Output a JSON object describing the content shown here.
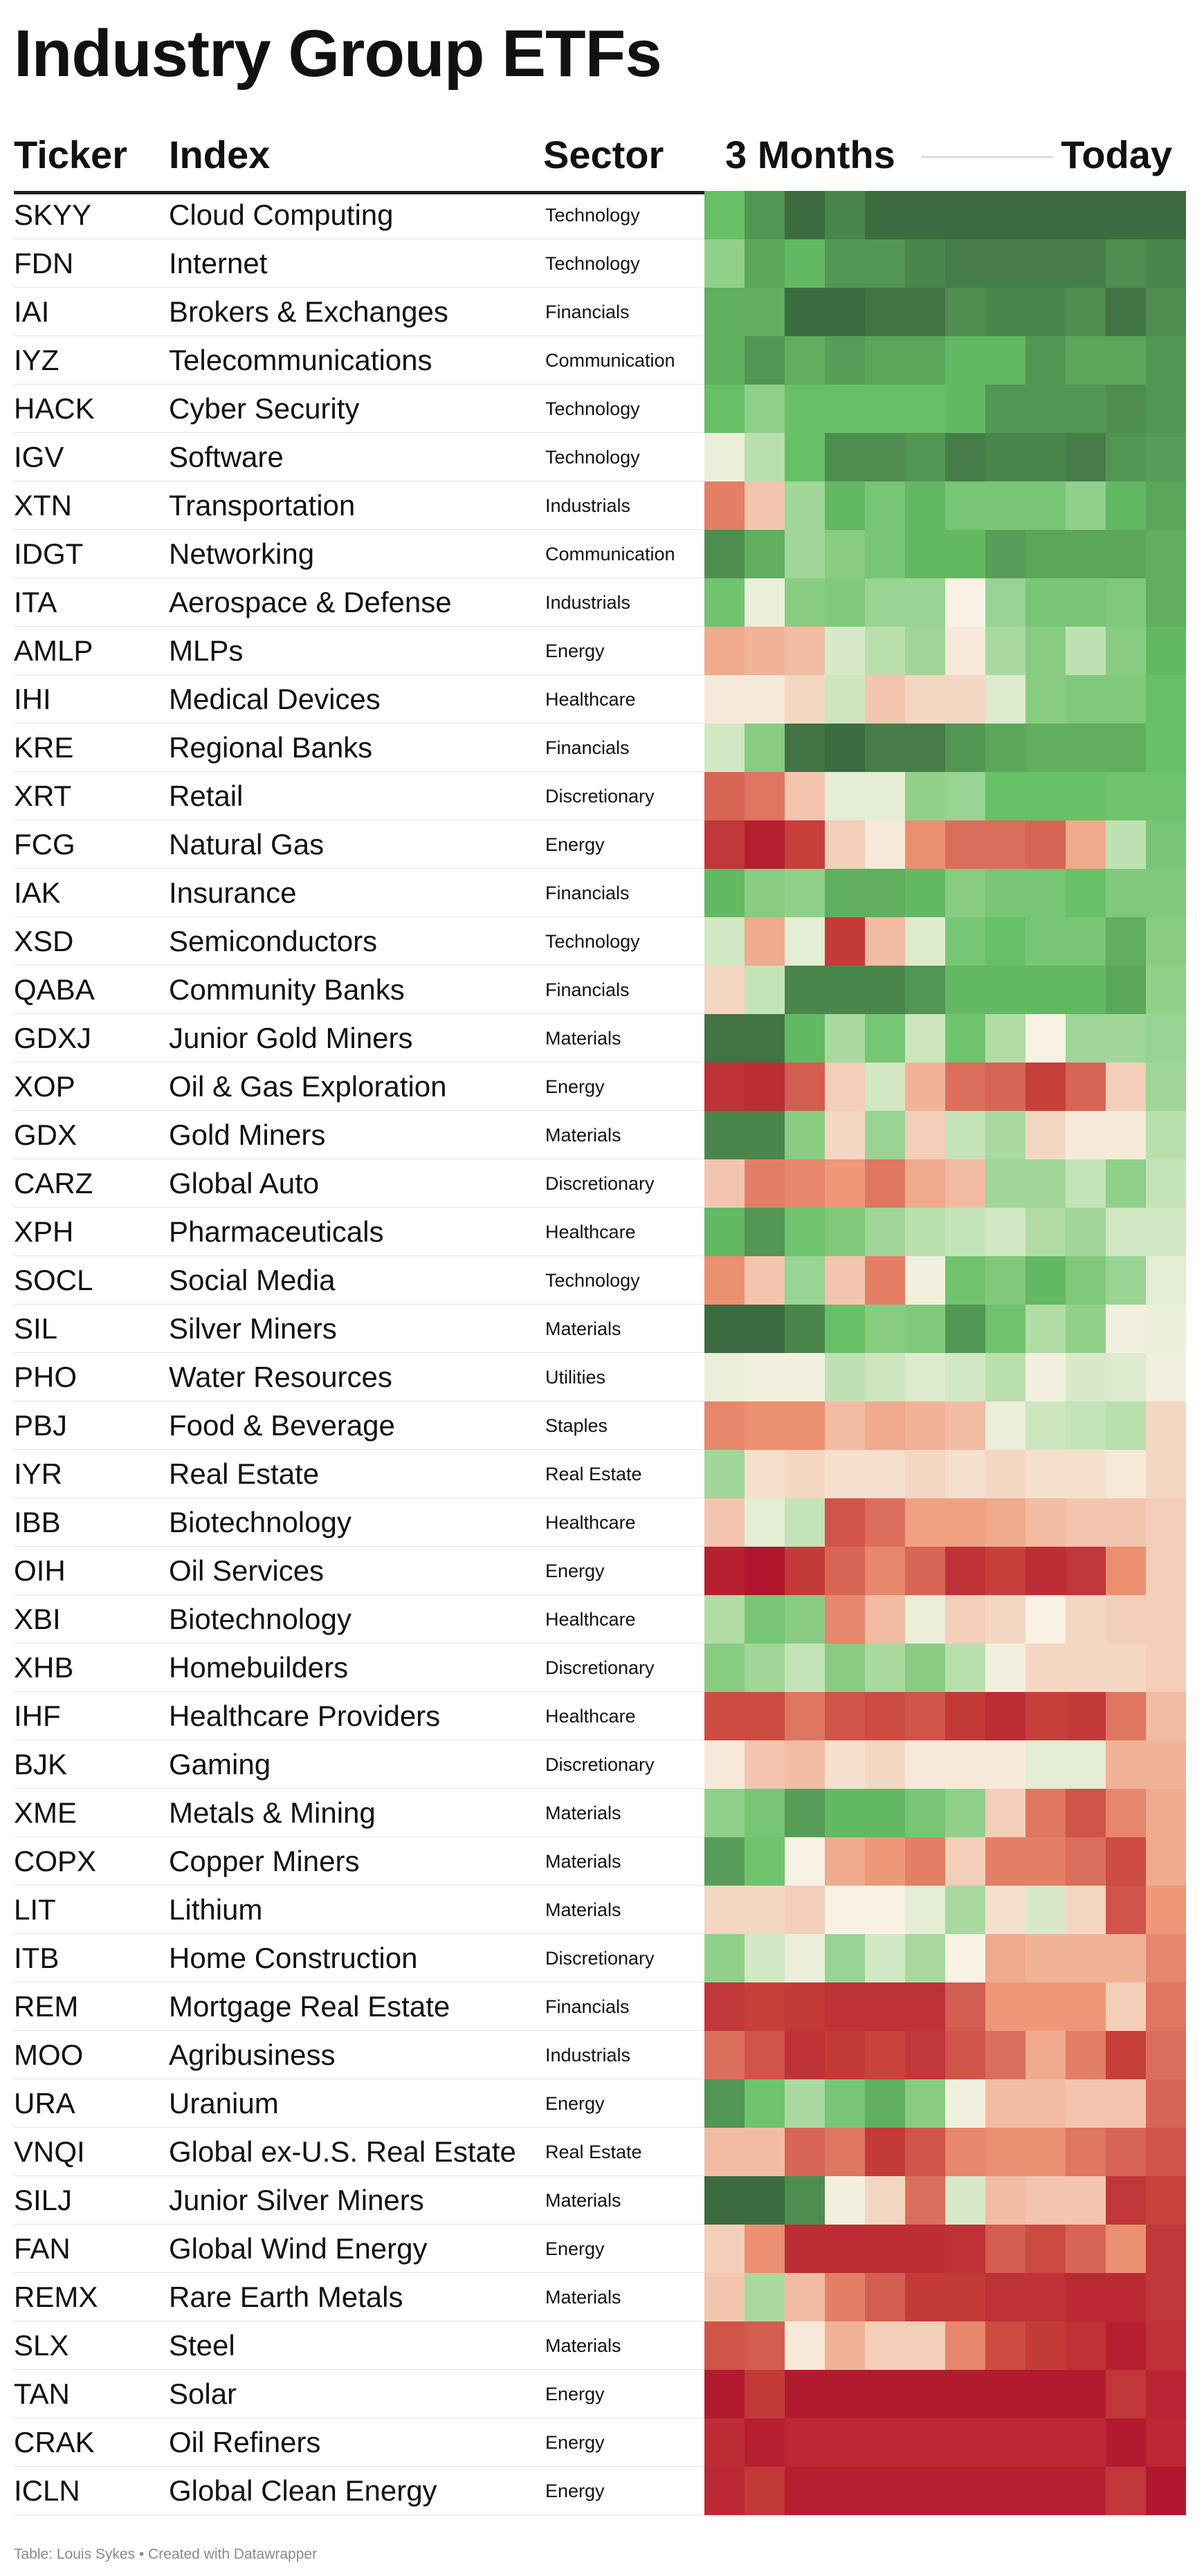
{
  "title": "Industry Group ETFs",
  "columns": {
    "ticker": "Ticker",
    "index": "Index",
    "sector": "Sector",
    "period_start": "3 Months",
    "period_end": "Today"
  },
  "footer": "Table: Louis Sykes • Created with Datawrapper",
  "colors": {
    "dark_red": "#b0172e",
    "red": "#c8433c",
    "salmon": "#ee9877",
    "cream": "#f7f2e4",
    "light_green": "#b9dfad",
    "green": "#67c066",
    "dark_green": "#3d6b40"
  },
  "chart_data": {
    "type": "heatmap",
    "title": "Industry Group ETFs",
    "color_scale": [
      "#b0172e",
      "#c8433c",
      "#ee9877",
      "#f7f2e4",
      "#b9dfad",
      "#67c066",
      "#3d6b40"
    ],
    "rows": [
      {
        "ticker": "SKYY",
        "index": "Cloud Computing",
        "sector": "Technology",
        "values": [
          2,
          2.5,
          3,
          2.7,
          3,
          3,
          3,
          3,
          3,
          3,
          3,
          3
        ]
      },
      {
        "ticker": "FDN",
        "index": "Internet",
        "sector": "Technology",
        "values": [
          1.5,
          2.3,
          2.1,
          2.5,
          2.5,
          2.7,
          2.8,
          2.8,
          2.8,
          2.8,
          2.6,
          2.7
        ]
      },
      {
        "ticker": "IAI",
        "index": "Brokers & Exchanges",
        "sector": "Financials",
        "values": [
          2.2,
          2.2,
          3,
          3,
          2.9,
          2.9,
          2.6,
          2.7,
          2.7,
          2.6,
          2.9,
          2.6
        ]
      },
      {
        "ticker": "IYZ",
        "index": "Telecommunications",
        "sector": "Communication",
        "values": [
          2.2,
          2.5,
          2.2,
          2.4,
          2.3,
          2.3,
          2.1,
          2.1,
          2.5,
          2.3,
          2.3,
          2.5
        ]
      },
      {
        "ticker": "HACK",
        "index": "Cyber Security",
        "sector": "Technology",
        "values": [
          2,
          1.5,
          2,
          2,
          2,
          2,
          2.1,
          2.5,
          2.5,
          2.5,
          2.6,
          2.5
        ]
      },
      {
        "ticker": "IGV",
        "index": "Software",
        "sector": "Technology",
        "values": [
          0.2,
          1,
          2,
          2.6,
          2.6,
          2.5,
          2.8,
          2.7,
          2.7,
          2.8,
          2.5,
          2.4
        ]
      },
      {
        "ticker": "XTN",
        "index": "Transportation",
        "sector": "Industrials",
        "values": [
          -1.3,
          -0.5,
          1.3,
          2.1,
          1.8,
          2.1,
          1.8,
          1.8,
          1.8,
          1.5,
          2.1,
          2.3
        ]
      },
      {
        "ticker": "IDGT",
        "index": "Networking",
        "sector": "Communication",
        "values": [
          2.6,
          2.2,
          1.3,
          1.6,
          1.8,
          2.1,
          2.1,
          2.4,
          2.3,
          2.3,
          2.3,
          2.2
        ]
      },
      {
        "ticker": "ITA",
        "index": "Aerospace & Defense",
        "sector": "Industrials",
        "values": [
          1.9,
          0.2,
          1.6,
          1.7,
          1.4,
          1.4,
          0,
          1.4,
          1.8,
          1.8,
          1.7,
          2.2
        ]
      },
      {
        "ticker": "AMLP",
        "index": "MLPs",
        "sector": "Energy",
        "values": [
          -0.8,
          -0.7,
          -0.6,
          0.5,
          1,
          1.3,
          -0.1,
          1.2,
          1.6,
          0.9,
          1.6,
          2.1
        ]
      },
      {
        "ticker": "IHI",
        "index": "Medical Devices",
        "sector": "Healthcare",
        "values": [
          -0.1,
          -0.1,
          -0.3,
          0.7,
          -0.5,
          -0.3,
          -0.3,
          0.4,
          1.6,
          1.7,
          1.7,
          2
        ]
      },
      {
        "ticker": "KRE",
        "index": "Regional Banks",
        "sector": "Financials",
        "values": [
          0.6,
          1.6,
          2.9,
          3,
          2.8,
          2.8,
          2.5,
          2.3,
          2.2,
          2.2,
          2.2,
          2
        ]
      },
      {
        "ticker": "XRT",
        "index": "Retail",
        "sector": "Discretionary",
        "values": [
          -1.6,
          -1.4,
          -0.5,
          0.3,
          0.3,
          1.5,
          1.4,
          2,
          2,
          2,
          1.9,
          1.9
        ]
      },
      {
        "ticker": "FCG",
        "index": "Natural Gas",
        "sector": "Energy",
        "values": [
          -2.3,
          -2.8,
          -2.1,
          -0.4,
          -0.1,
          -1.1,
          -1.5,
          -1.5,
          -1.6,
          -0.8,
          0.9,
          1.8
        ]
      },
      {
        "ticker": "IAK",
        "index": "Insurance",
        "sector": "Financials",
        "values": [
          2.1,
          1.6,
          1.5,
          2.2,
          2.2,
          2.1,
          1.6,
          1.8,
          1.8,
          2,
          1.7,
          1.7
        ]
      },
      {
        "ticker": "XSD",
        "index": "Semiconductors",
        "sector": "Technology",
        "values": [
          0.6,
          -0.8,
          0.3,
          -2.2,
          -0.6,
          0.4,
          1.8,
          2,
          1.8,
          1.8,
          2.2,
          1.6
        ]
      },
      {
        "ticker": "QABA",
        "index": "Community Banks",
        "sector": "Financials",
        "values": [
          -0.3,
          0.8,
          2.7,
          2.7,
          2.7,
          2.5,
          2.1,
          2.1,
          2.1,
          2.1,
          2.3,
          1.5
        ]
      },
      {
        "ticker": "GDXJ",
        "index": "Junior Gold Miners",
        "sector": "Materials",
        "values": [
          2.9,
          2.9,
          2.1,
          1.2,
          1.8,
          0.7,
          1.9,
          1.1,
          0,
          1.3,
          1.3,
          1.4
        ]
      },
      {
        "ticker": "XOP",
        "index": "Oil & Gas Exploration",
        "sector": "Energy",
        "values": [
          -2.4,
          -2.5,
          -1.7,
          -0.4,
          0.6,
          -0.7,
          -1.5,
          -1.6,
          -2.1,
          -1.6,
          -0.4,
          1.3
        ]
      },
      {
        "ticker": "GDX",
        "index": "Gold Miners",
        "sector": "Materials",
        "values": [
          2.7,
          2.7,
          1.6,
          -0.3,
          1.4,
          -0.4,
          0.8,
          1.2,
          -0.3,
          -0.1,
          -0.1,
          1
        ]
      },
      {
        "ticker": "CARZ",
        "index": "Global Auto",
        "sector": "Discretionary",
        "values": [
          -0.5,
          -1.3,
          -1.2,
          -1,
          -1.4,
          -0.8,
          -0.6,
          1.3,
          1.3,
          0.8,
          1.5,
          0.8
        ]
      },
      {
        "ticker": "XPH",
        "index": "Pharmaceuticals",
        "sector": "Healthcare",
        "values": [
          2.1,
          2.5,
          1.9,
          1.7,
          1.3,
          1,
          0.8,
          0.6,
          1.1,
          1.3,
          0.6,
          0.6
        ]
      },
      {
        "ticker": "SOCL",
        "index": "Social Media",
        "sector": "Technology",
        "values": [
          -1.1,
          -0.5,
          1.4,
          -0.5,
          -1.3,
          0.1,
          1.9,
          1.7,
          2.1,
          1.7,
          1.4,
          0.3
        ]
      },
      {
        "ticker": "SIL",
        "index": "Silver Miners",
        "sector": "Materials",
        "values": [
          3,
          3,
          2.7,
          2,
          1.6,
          1.7,
          2.5,
          1.9,
          1.1,
          1.5,
          0.1,
          0.2
        ]
      },
      {
        "ticker": "PHO",
        "index": "Water Resources",
        "sector": "Utilities",
        "values": [
          0.2,
          0.1,
          0.1,
          0.9,
          0.7,
          0.4,
          0.6,
          1,
          0.1,
          0.5,
          0.4,
          0.1
        ]
      },
      {
        "ticker": "PBJ",
        "index": "Food & Beverage",
        "sector": "Staples",
        "values": [
          -1.2,
          -1.1,
          -1.1,
          -0.6,
          -0.8,
          -0.7,
          -0.6,
          0.2,
          0.7,
          0.8,
          1,
          -0.3
        ]
      },
      {
        "ticker": "IYR",
        "index": "Real Estate",
        "sector": "Real Estate",
        "values": [
          1.3,
          -0.2,
          -0.3,
          -0.2,
          -0.2,
          -0.3,
          -0.2,
          -0.3,
          -0.2,
          -0.2,
          -0.1,
          -0.3
        ]
      },
      {
        "ticker": "IBB",
        "index": "Biotechnology",
        "sector": "Healthcare",
        "values": [
          -0.5,
          0.3,
          0.8,
          -1.8,
          -1.5,
          -0.9,
          -0.9,
          -0.8,
          -0.6,
          -0.5,
          -0.5,
          -0.4
        ]
      },
      {
        "ticker": "OIH",
        "index": "Oil Services",
        "sector": "Energy",
        "values": [
          -2.8,
          -3,
          -2.2,
          -1.6,
          -1.2,
          -1.6,
          -2.4,
          -2.1,
          -2.5,
          -2.3,
          -1.1,
          -0.4
        ]
      },
      {
        "ticker": "XBI",
        "index": "Biotechnology",
        "sector": "Healthcare",
        "values": [
          1.1,
          1.8,
          1.6,
          -1.2,
          -0.6,
          0.2,
          -0.4,
          -0.3,
          0,
          -0.3,
          -0.4,
          -0.4
        ]
      },
      {
        "ticker": "XHB",
        "index": "Homebuilders",
        "sector": "Discretionary",
        "values": [
          1.6,
          1.3,
          0.8,
          1.6,
          1.2,
          1.6,
          1,
          0.1,
          -0.3,
          -0.3,
          -0.3,
          -0.4
        ]
      },
      {
        "ticker": "IHF",
        "index": "Healthcare Providers",
        "sector": "Healthcare",
        "values": [
          -1.9,
          -1.9,
          -1.4,
          -1.8,
          -1.9,
          -1.8,
          -2.2,
          -2.5,
          -2.1,
          -2.2,
          -1.4,
          -0.6
        ]
      },
      {
        "ticker": "BJK",
        "index": "Gaming",
        "sector": "Discretionary",
        "values": [
          -0.1,
          -0.5,
          -0.6,
          -0.2,
          -0.3,
          -0.1,
          -0.1,
          -0.1,
          0.3,
          0.3,
          -0.7,
          -0.7
        ]
      },
      {
        "ticker": "XME",
        "index": "Metals & Mining",
        "sector": "Materials",
        "values": [
          1.5,
          1.8,
          2.4,
          2.1,
          2.1,
          1.8,
          1.5,
          -0.4,
          -1.4,
          -1.8,
          -1.2,
          -0.8
        ]
      },
      {
        "ticker": "COPX",
        "index": "Copper Miners",
        "sector": "Materials",
        "values": [
          2.4,
          1.9,
          0,
          -0.8,
          -1,
          -1.3,
          -0.4,
          -1.3,
          -1.3,
          -1.5,
          -1.9,
          -0.8
        ]
      },
      {
        "ticker": "LIT",
        "index": "Lithium",
        "sector": "Materials",
        "values": [
          -0.3,
          -0.3,
          -0.4,
          0,
          0,
          0.3,
          1.2,
          -0.2,
          0.5,
          -0.3,
          -1.8,
          -1
        ]
      },
      {
        "ticker": "ITB",
        "index": "Home Construction",
        "sector": "Discretionary",
        "values": [
          1.5,
          0.6,
          0.2,
          1.4,
          0.6,
          1.2,
          0,
          -0.8,
          -0.7,
          -0.7,
          -0.7,
          -1.2
        ]
      },
      {
        "ticker": "REM",
        "index": "Mortgage Real Estate",
        "sector": "Financials",
        "values": [
          -2.3,
          -2.1,
          -2.2,
          -2.4,
          -2.4,
          -2.4,
          -1.7,
          -1,
          -1,
          -1,
          -0.4,
          -1.4
        ]
      },
      {
        "ticker": "MOO",
        "index": "Agribusiness",
        "sector": "Industrials",
        "values": [
          -1.5,
          -1.8,
          -2.4,
          -2.2,
          -2,
          -2.3,
          -1.8,
          -1.5,
          -0.8,
          -1.3,
          -2.1,
          -1.5
        ]
      },
      {
        "ticker": "URA",
        "index": "Uranium",
        "sector": "Energy",
        "values": [
          2.5,
          1.9,
          1.2,
          1.8,
          2.2,
          1.6,
          0.1,
          -0.6,
          -0.6,
          -0.5,
          -0.5,
          -1.6
        ]
      },
      {
        "ticker": "VNQI",
        "index": "Global ex-U.S. Real Estate",
        "sector": "Real Estate",
        "values": [
          -0.6,
          -0.6,
          -1.6,
          -1.4,
          -2.2,
          -1.8,
          -1.2,
          -1.1,
          -1.1,
          -1.4,
          -1.6,
          -1.8
        ]
      },
      {
        "ticker": "SILJ",
        "index": "Junior Silver Miners",
        "sector": "Materials",
        "values": [
          3,
          3,
          2.6,
          0.1,
          -0.3,
          -1.5,
          0.5,
          -0.6,
          -0.5,
          -0.5,
          -2.3,
          -2
        ]
      },
      {
        "ticker": "FAN",
        "index": "Global Wind Energy",
        "sector": "Energy",
        "values": [
          -0.4,
          -1.1,
          -2.5,
          -2.5,
          -2.5,
          -2.5,
          -2.4,
          -1.7,
          -1.9,
          -1.6,
          -1.1,
          -2.3
        ]
      },
      {
        "ticker": "REMX",
        "index": "Rare Earth Metals",
        "sector": "Materials",
        "values": [
          -0.5,
          1.2,
          -0.6,
          -1.3,
          -1.7,
          -2.2,
          -2.2,
          -2.4,
          -2.4,
          -2.6,
          -2.6,
          -2.3
        ]
      },
      {
        "ticker": "SLX",
        "index": "Steel",
        "sector": "Materials",
        "values": [
          -1.8,
          -1.7,
          -0.1,
          -0.7,
          -0.4,
          -0.4,
          -1.2,
          -1.9,
          -2.2,
          -2.4,
          -2.8,
          -2.4
        ]
      },
      {
        "ticker": "TAN",
        "index": "Solar",
        "sector": "Energy",
        "values": [
          -2.9,
          -2.2,
          -2.9,
          -2.9,
          -2.9,
          -2.9,
          -2.9,
          -2.9,
          -2.9,
          -2.9,
          -2.3,
          -2.7
        ]
      },
      {
        "ticker": "CRAK",
        "index": "Oil Refiners",
        "sector": "Energy",
        "values": [
          -2.5,
          -2.8,
          -2.6,
          -2.6,
          -2.6,
          -2.6,
          -2.6,
          -2.6,
          -2.6,
          -2.6,
          -2.9,
          -2.6
        ]
      },
      {
        "ticker": "ICLN",
        "index": "Global Clean Energy",
        "sector": "Energy",
        "values": [
          -2.6,
          -2.2,
          -2.8,
          -2.8,
          -2.8,
          -2.8,
          -2.8,
          -2.8,
          -2.8,
          -2.8,
          -2.3,
          -3
        ]
      }
    ]
  }
}
